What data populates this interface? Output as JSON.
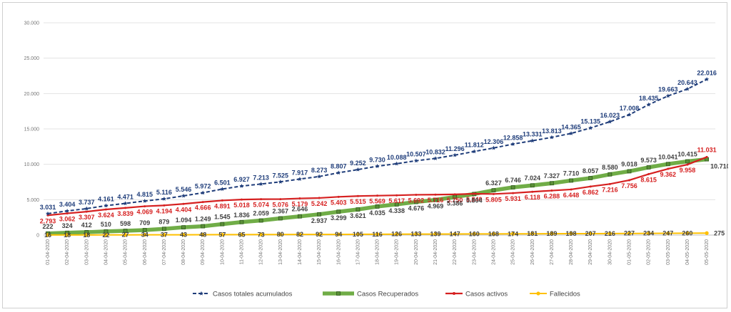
{
  "chart_data": {
    "type": "line",
    "title": "",
    "xlabel": "",
    "ylabel": "",
    "ylim": [
      0,
      30000
    ],
    "y_ticks": [
      "0",
      "5.000",
      "10.000",
      "15.000",
      "20.000",
      "25.000",
      "30.000"
    ],
    "y_tick_values": [
      0,
      5000,
      10000,
      15000,
      20000,
      25000,
      30000
    ],
    "grid": true,
    "legend_position": "bottom",
    "categories": [
      "01-04-2020",
      "02-04-2020",
      "03-04-2020",
      "04-04-2020",
      "05-04-2020",
      "06-04-2020",
      "07-04-2020",
      "08-04-2020",
      "09-04-2020",
      "10-04-2020",
      "11-04-2020",
      "12-04-2020",
      "13-04-2020",
      "14-04-2020",
      "15-04-2020",
      "16-04-2020",
      "17-04-2020",
      "18-04-2020",
      "19-04-2020",
      "20-04-2020",
      "21-04-2020",
      "22-04-2020",
      "23-04-2020",
      "24-04-2020",
      "25-04-2020",
      "26-04-2020",
      "27-04-2020",
      "28-04-2020",
      "29-04-2020",
      "30-04-2020",
      "01-05-2020",
      "02-05-2020",
      "03-05-2020",
      "04-05-2020",
      "05-05-2020"
    ],
    "series": [
      {
        "name": "Casos totales acumulados",
        "color": "#1f3d7a",
        "style": "dashed-star",
        "values": [
          3031,
          3404,
          3737,
          4161,
          4471,
          4815,
          5116,
          5546,
          5972,
          6501,
          6927,
          7213,
          7525,
          7917,
          8273,
          8807,
          9252,
          9730,
          10088,
          10507,
          10832,
          11296,
          11812,
          12306,
          12858,
          13331,
          13813,
          14365,
          15135,
          16023,
          17008,
          18435,
          19663,
          20643,
          22016
        ],
        "labels": [
          "3.031",
          "3.404",
          "3.737",
          "4.161",
          "4.471",
          "4.815",
          "5.116",
          "5.546",
          "5.972",
          "6.501",
          "6.927",
          "7.213",
          "7.525",
          "7.917",
          "8.273",
          "8.807",
          "9.252",
          "9.730",
          "10.088",
          "10.507",
          "10.832",
          "11.296",
          "11.812",
          "12.306",
          "12.858",
          "13.331",
          "13.813",
          "14.365",
          "15.135",
          "16.023",
          "17.008",
          "18.435",
          "19.663",
          "20.643",
          "22.016"
        ]
      },
      {
        "name": "Casos Recuperados",
        "color": "#70ad47",
        "style": "thick-square",
        "values": [
          222,
          324,
          412,
          510,
          598,
          709,
          879,
          1094,
          1249,
          1545,
          1836,
          2059,
          2367,
          2646,
          2937,
          3299,
          3621,
          4035,
          4338,
          4676,
          4969,
          5386,
          5804,
          6327,
          6746,
          7024,
          7327,
          7710,
          8057,
          8580,
          9018,
          9573,
          10041,
          10415,
          10710
        ],
        "labels": [
          "222",
          "324",
          "412",
          "510",
          "598",
          "709",
          "879",
          "1.094",
          "1.249",
          "1.545",
          "1.836",
          "2.059",
          "2.367",
          "2.646",
          "2.937",
          "3.299",
          "3.621",
          "4.035",
          "4.338",
          "4.676",
          "4.969",
          "5.386",
          "5.804",
          "6.327",
          "6.746",
          "7.024",
          "7.327",
          "7.710",
          "8.057",
          "8.580",
          "9.018",
          "9.573",
          "10.041",
          "10.415",
          "10.710"
        ]
      },
      {
        "name": "Casos activos",
        "color": "#d62020",
        "style": "solid",
        "values": [
          2793,
          3062,
          3307,
          3624,
          3839,
          4069,
          4194,
          4404,
          4666,
          4891,
          5018,
          5074,
          5076,
          5179,
          5242,
          5403,
          5515,
          5569,
          5617,
          5692,
          5716,
          5750,
          5840,
          5805,
          5931,
          6118,
          6288,
          6448,
          6862,
          7216,
          7756,
          8615,
          9362,
          9958,
          11031
        ],
        "labels": [
          "2.793",
          "3.062",
          "3.307",
          "3.624",
          "3.839",
          "4.069",
          "4.194",
          "4.404",
          "4.666",
          "4.891",
          "5.018",
          "5.074",
          "5.076",
          "5.179",
          "5.242",
          "5.403",
          "5.515",
          "5.569",
          "5.617",
          "5.692",
          "5.716",
          "5.750",
          "5.840",
          "5.805",
          "5.931",
          "6.118",
          "6.288",
          "6.448",
          "6.862",
          "7.216",
          "7.756",
          "8.615",
          "9.362",
          "9.958",
          "11.031"
        ]
      },
      {
        "name": "Fallecidos",
        "color": "#ffc000",
        "style": "dot",
        "values": [
          16,
          18,
          18,
          22,
          27,
          34,
          37,
          43,
          48,
          57,
          65,
          73,
          80,
          82,
          92,
          94,
          105,
          116,
          126,
          133,
          139,
          147,
          160,
          168,
          174,
          181,
          189,
          198,
          207,
          216,
          227,
          234,
          247,
          260,
          275
        ],
        "labels": [
          "16",
          "18",
          "18",
          "22",
          "27",
          "34",
          "37",
          "43",
          "48",
          "57",
          "65",
          "73",
          "80",
          "82",
          "92",
          "94",
          "105",
          "116",
          "126",
          "133",
          "139",
          "147",
          "160",
          "168",
          "174",
          "181",
          "189",
          "198",
          "207",
          "216",
          "227",
          "234",
          "247",
          "260",
          "275"
        ]
      }
    ]
  }
}
